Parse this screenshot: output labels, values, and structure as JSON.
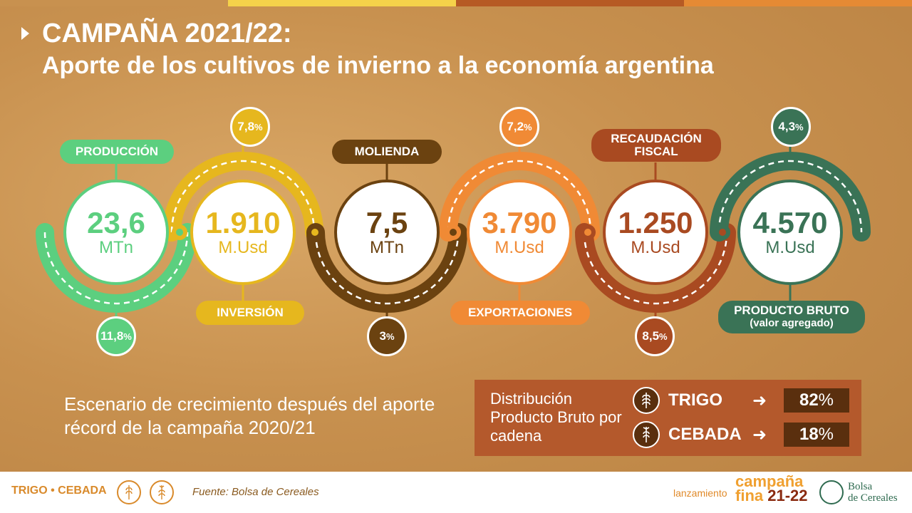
{
  "header": {
    "title_line1": "CAMPAÑA 2021/22:",
    "title_line2": "Aporte de los cultivos de invierno a la economía argentina"
  },
  "topbar_colors": [
    "#c8914f",
    "#f5d24a",
    "#b65a24",
    "#e58a34"
  ],
  "metrics": [
    {
      "label": "PRODUCCIÓN",
      "value": "23,6",
      "unit": "MTn",
      "pct": "11,8",
      "color": "#5ccf7f"
    },
    {
      "label": "INVERSIÓN",
      "value": "1.910",
      "unit": "M.Usd",
      "pct": "7,8",
      "color": "#e6b71e"
    },
    {
      "label": "MOLIENDA",
      "value": "7,5",
      "unit": "MTn",
      "pct": "3",
      "color": "#6b4210"
    },
    {
      "label": "EXPORTACIONES",
      "value": "3.790",
      "unit": "M.Usd",
      "pct": "7,2",
      "color": "#f08a35"
    },
    {
      "label_l1": "RECAUDACIÓN",
      "label_l2": "FISCAL",
      "value": "1.250",
      "unit": "M.Usd",
      "pct": "8,5",
      "color": "#a94a21"
    },
    {
      "label_l1": "PRODUCTO BRUTO",
      "label_l2": "(valor agregado)",
      "value": "4.570",
      "unit": "M.Usd",
      "pct": "4,3",
      "color": "#3a7356"
    }
  ],
  "pct_symbol": "%",
  "scenario_text": "Escenario de crecimiento después del aporte récord de la campaña 2020/21",
  "distribution": {
    "label": "Distribución Producto Bruto por cadena",
    "rows": [
      {
        "name": "TRIGO",
        "arrow": "➜",
        "value": "82",
        "pct_symbol": "%"
      },
      {
        "name": "CEBADA",
        "arrow": "➜",
        "value": "18",
        "pct_symbol": "%"
      }
    ]
  },
  "footer": {
    "brand": "TRIGO • CEBADA",
    "source": "Fuente: Bolsa de Cereales",
    "lanzamiento": "lanzamiento",
    "campana_l1": "campaña",
    "campana_l2a": "fina ",
    "campana_l2b": "21-22",
    "bolsa_l1": "Bolsa",
    "bolsa_l2": "de Cereales"
  }
}
